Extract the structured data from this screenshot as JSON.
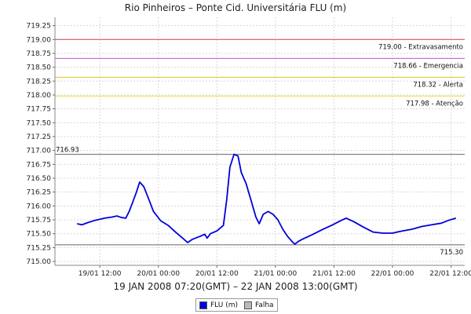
{
  "chart_data": {
    "type": "line",
    "title": "Rio Pinheiros – Ponte Cid. Universitária FLU (m)",
    "subtitle": "19 JAN 2008 07:20(GMT) – 22 JAN 2008 13:00(GMT)",
    "xlabel": "",
    "ylabel": "",
    "ylim": [
      714.93,
      719.4
    ],
    "xlim": [
      "2008-01-19T02:48:00",
      "2008-01-22T14:48:00"
    ],
    "y_ticks": [
      "715.00",
      "715.25",
      "715.50",
      "715.75",
      "716.00",
      "716.25",
      "716.50",
      "716.75",
      "717.00",
      "717.25",
      "717.50",
      "717.75",
      "718.00",
      "718.25",
      "718.50",
      "718.75",
      "719.00",
      "719.25"
    ],
    "x_ticks": [
      {
        "t": "2008-01-19T12:00:00",
        "label": "19/01 12:00"
      },
      {
        "t": "2008-01-20T00:00:00",
        "label": "20/01 00:00"
      },
      {
        "t": "2008-01-20T12:00:00",
        "label": "20/01 12:00"
      },
      {
        "t": "2008-01-21T00:00:00",
        "label": "21/01 00:00"
      },
      {
        "t": "2008-01-21T12:00:00",
        "label": "21/01 12:00"
      },
      {
        "t": "2008-01-22T00:00:00",
        "label": "22/01 00:00"
      },
      {
        "t": "2008-01-22T12:00:00",
        "label": "22/01 12:00"
      }
    ],
    "thresholds": [
      {
        "value": 719.0,
        "label": "719.00 - Extravasamento",
        "color": "#cc4455"
      },
      {
        "value": 718.66,
        "label": "718.66 - Emergencia",
        "color": "#bb55cc"
      },
      {
        "value": 718.32,
        "label": "718.32 - Alerta",
        "color": "#e0c020"
      },
      {
        "value": 717.98,
        "label": "717.98 - Atenção",
        "color": "#eedd44"
      }
    ],
    "max_marker": {
      "value": 716.93,
      "label": "716.93",
      "color": "#666666"
    },
    "min_marker": {
      "value": 715.3,
      "label": "715.30",
      "color": "#666666"
    },
    "grid": true,
    "legend_position": "bottom",
    "series": [
      {
        "name": "FLU (m)",
        "color": "#0000dd",
        "points": [
          [
            "2008-01-19T07:20:00",
            715.68
          ],
          [
            "2008-01-19T08:20:00",
            715.66
          ],
          [
            "2008-01-19T09:30:00",
            715.7
          ],
          [
            "2008-01-19T11:00:00",
            715.74
          ],
          [
            "2008-01-19T13:00:00",
            715.78
          ],
          [
            "2008-01-19T14:30:00",
            715.8
          ],
          [
            "2008-01-19T15:30:00",
            715.82
          ],
          [
            "2008-01-19T16:30:00",
            715.79
          ],
          [
            "2008-01-19T17:20:00",
            715.78
          ],
          [
            "2008-01-19T18:00:00",
            715.9
          ],
          [
            "2008-01-19T18:40:00",
            716.05
          ],
          [
            "2008-01-19T19:30:00",
            716.25
          ],
          [
            "2008-01-19T20:10:00",
            716.43
          ],
          [
            "2008-01-19T21:00:00",
            716.35
          ],
          [
            "2008-01-19T22:00:00",
            716.13
          ],
          [
            "2008-01-19T23:00:00",
            715.9
          ],
          [
            "2008-01-20T00:30:00",
            715.73
          ],
          [
            "2008-01-20T02:00:00",
            715.65
          ],
          [
            "2008-01-20T03:30:00",
            715.53
          ],
          [
            "2008-01-20T05:00:00",
            715.42
          ],
          [
            "2008-01-20T06:00:00",
            715.34
          ],
          [
            "2008-01-20T07:00:00",
            715.4
          ],
          [
            "2008-01-20T08:30:00",
            715.45
          ],
          [
            "2008-01-20T09:30:00",
            715.49
          ],
          [
            "2008-01-20T10:00:00",
            715.42
          ],
          [
            "2008-01-20T10:40:00",
            715.5
          ],
          [
            "2008-01-20T12:00:00",
            715.55
          ],
          [
            "2008-01-20T13:20:00",
            715.65
          ],
          [
            "2008-01-20T14:00:00",
            716.1
          ],
          [
            "2008-01-20T14:40:00",
            716.7
          ],
          [
            "2008-01-20T15:30:00",
            716.93
          ],
          [
            "2008-01-20T16:20:00",
            716.9
          ],
          [
            "2008-01-20T17:00:00",
            716.6
          ],
          [
            "2008-01-20T18:00:00",
            716.4
          ],
          [
            "2008-01-20T19:00:00",
            716.1
          ],
          [
            "2008-01-20T20:00:00",
            715.8
          ],
          [
            "2008-01-20T20:40:00",
            715.68
          ],
          [
            "2008-01-20T21:30:00",
            715.85
          ],
          [
            "2008-01-20T22:30:00",
            715.9
          ],
          [
            "2008-01-20T23:30:00",
            715.85
          ],
          [
            "2008-01-21T00:30:00",
            715.75
          ],
          [
            "2008-01-21T01:30:00",
            715.58
          ],
          [
            "2008-01-21T02:30:00",
            715.45
          ],
          [
            "2008-01-21T03:30:00",
            715.35
          ],
          [
            "2008-01-21T04:00:00",
            715.31
          ],
          [
            "2008-01-21T04:40:00",
            715.36
          ],
          [
            "2008-01-21T05:30:00",
            715.4
          ],
          [
            "2008-01-21T07:30:00",
            715.48
          ],
          [
            "2008-01-21T09:30:00",
            715.57
          ],
          [
            "2008-01-21T11:30:00",
            715.65
          ],
          [
            "2008-01-21T13:30:00",
            715.74
          ],
          [
            "2008-01-21T14:30:00",
            715.78
          ],
          [
            "2008-01-21T16:00:00",
            715.72
          ],
          [
            "2008-01-21T18:00:00",
            715.62
          ],
          [
            "2008-01-21T20:00:00",
            715.53
          ],
          [
            "2008-01-21T22:00:00",
            715.51
          ],
          [
            "2008-01-22T00:00:00",
            715.51
          ],
          [
            "2008-01-22T02:00:00",
            715.55
          ],
          [
            "2008-01-22T04:00:00",
            715.58
          ],
          [
            "2008-01-22T06:00:00",
            715.63
          ],
          [
            "2008-01-22T08:00:00",
            715.66
          ],
          [
            "2008-01-22T10:00:00",
            715.69
          ],
          [
            "2008-01-22T11:30:00",
            715.74
          ],
          [
            "2008-01-22T13:00:00",
            715.78
          ]
        ]
      },
      {
        "name": "Falha",
        "color": "#bbbbbb",
        "points": []
      }
    ]
  }
}
